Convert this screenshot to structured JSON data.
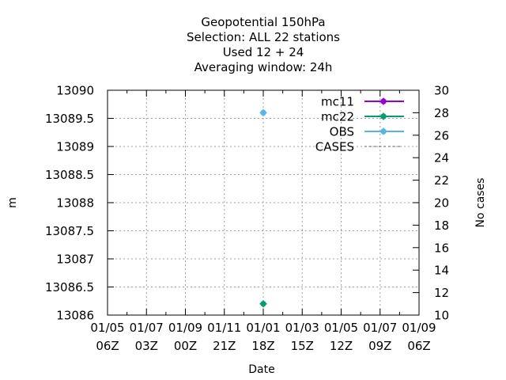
{
  "chart_data": {
    "type": "scatter",
    "title_lines": [
      "Geopotential 150hPa",
      "Selection: ALL      22 stations",
      "Used  12 + 24",
      "Averaging window: 24h"
    ],
    "xlabel": "Date",
    "ylabel": "m",
    "y2label": "No cases",
    "x_ticks": [
      {
        "top": "01/05",
        "bottom": "06Z"
      },
      {
        "top": "01/07",
        "bottom": "03Z"
      },
      {
        "top": "01/09",
        "bottom": "00Z"
      },
      {
        "top": "01/11",
        "bottom": "21Z"
      },
      {
        "top": "01/01",
        "bottom": "18Z"
      },
      {
        "top": "01/03",
        "bottom": "15Z"
      },
      {
        "top": "01/05",
        "bottom": "12Z"
      },
      {
        "top": "01/07",
        "bottom": "09Z"
      },
      {
        "top": "01/09",
        "bottom": "06Z"
      }
    ],
    "x_minor_per_major": 2,
    "ylim": [
      13086,
      13090
    ],
    "y_ticks": [
      "13090",
      "13089.5",
      "13089",
      "13088.5",
      "13088",
      "13087.5",
      "13087",
      "13086.5",
      "13086"
    ],
    "y2lim": [
      10,
      30
    ],
    "y2_ticks": [
      "30",
      "28",
      "26",
      "24",
      "22",
      "20",
      "18",
      "16",
      "14",
      "12",
      "10"
    ],
    "grid": true,
    "legend_position": "top-right",
    "series": [
      {
        "name": "mc11",
        "color": "#9400d3",
        "style": "line-points",
        "points": [
          {
            "x_tick": 4,
            "y": null
          }
        ]
      },
      {
        "name": "mc22",
        "color": "#009e73",
        "style": "line-points",
        "points": [
          {
            "x_tick": 4,
            "y": 13086.2
          }
        ]
      },
      {
        "name": "OBS",
        "color": "#56b4e9",
        "style": "line-points",
        "points": [
          {
            "x_tick": 4,
            "y": 13089.6
          }
        ]
      },
      {
        "name": "CASES",
        "color": "#808080",
        "style": "dashed",
        "points": []
      }
    ]
  }
}
